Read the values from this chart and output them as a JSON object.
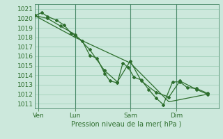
{
  "title": "",
  "xlabel": "Pression niveau de la mer( hPa )",
  "bg_color": "#cce8dc",
  "grid_color": "#99ccb3",
  "line_color": "#2d6e2d",
  "vline_color": "#4a8a6a",
  "xlim": [
    0,
    100
  ],
  "ylim": [
    1010.5,
    1021.5
  ],
  "yticks": [
    1011,
    1012,
    1013,
    1014,
    1015,
    1016,
    1017,
    1018,
    1019,
    1020,
    1021
  ],
  "xtick_positions": [
    2,
    22,
    52,
    77
  ],
  "xtick_labels": [
    "Ven",
    "Lun",
    "Sam",
    "Dim"
  ],
  "vline_positions": [
    2,
    22,
    52,
    77
  ],
  "line1_markers": [
    [
      0,
      1020.3
    ],
    [
      4,
      1020.6
    ],
    [
      7,
      1020.2
    ],
    [
      12,
      1019.8
    ],
    [
      16,
      1019.3
    ],
    [
      20,
      1018.4
    ],
    [
      22,
      1018.2
    ],
    [
      26,
      1017.6
    ],
    [
      30,
      1016.1
    ],
    [
      34,
      1015.8
    ],
    [
      38,
      1014.2
    ],
    [
      41,
      1013.4
    ],
    [
      45,
      1013.2
    ],
    [
      48,
      1015.3
    ],
    [
      51,
      1014.8
    ],
    [
      54,
      1013.8
    ],
    [
      58,
      1013.5
    ],
    [
      62,
      1012.5
    ],
    [
      66,
      1011.6
    ],
    [
      70,
      1010.9
    ],
    [
      75,
      1013.3
    ],
    [
      79,
      1013.3
    ],
    [
      83,
      1012.7
    ],
    [
      88,
      1012.6
    ],
    [
      94,
      1012.1
    ]
  ],
  "line2_markers": [
    [
      0,
      1020.3
    ],
    [
      7,
      1020.0
    ],
    [
      14,
      1019.2
    ],
    [
      22,
      1018.3
    ],
    [
      30,
      1016.7
    ],
    [
      38,
      1014.5
    ],
    [
      45,
      1013.3
    ],
    [
      52,
      1015.5
    ],
    [
      58,
      1013.4
    ],
    [
      66,
      1012.2
    ],
    [
      73,
      1011.7
    ],
    [
      79,
      1013.4
    ],
    [
      88,
      1012.5
    ],
    [
      94,
      1012.0
    ]
  ],
  "line3_smooth": [
    [
      0,
      1020.3
    ],
    [
      22,
      1018.0
    ],
    [
      52,
      1015.3
    ],
    [
      73,
      1011.2
    ],
    [
      94,
      1012.0
    ]
  ]
}
